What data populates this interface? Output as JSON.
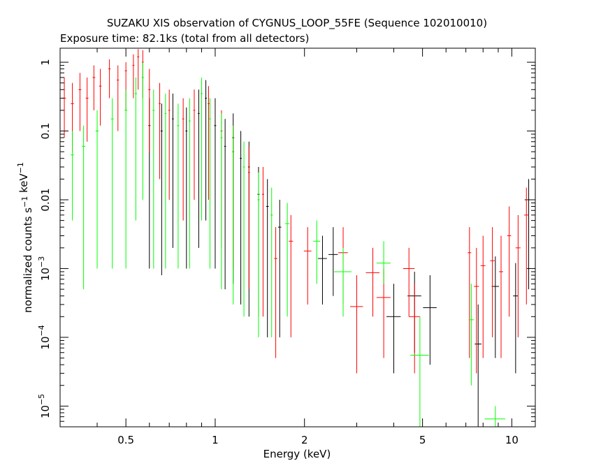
{
  "chart_data": {
    "type": "scatter",
    "title": "SUZAKU XIS observation of CYGNUS_LOOP_55FE (Sequence 102010010)",
    "subtitle": "Exposure time: 82.1ks (total from all detectors)",
    "xlabel": "Energy (keV)",
    "ylabel": "normalized counts s^-1 keV^-1",
    "x_scale": "log",
    "y_scale": "log",
    "xlim": [
      0.3,
      12
    ],
    "ylim": [
      5e-06,
      1.6
    ],
    "x_ticks": [
      {
        "value": 0.5,
        "label": "0.5"
      },
      {
        "value": 1,
        "label": "1"
      },
      {
        "value": 2,
        "label": "2"
      },
      {
        "value": 5,
        "label": "5"
      },
      {
        "value": 10,
        "label": "10"
      }
    ],
    "y_ticks": [
      {
        "value": 1,
        "base": "1",
        "exp": ""
      },
      {
        "value": 0.1,
        "base": "0.1",
        "exp": ""
      },
      {
        "value": 0.01,
        "base": "0.01",
        "exp": ""
      },
      {
        "value": 0.001,
        "base": "10",
        "exp": "−3"
      },
      {
        "value": 0.0001,
        "base": "10",
        "exp": "−4"
      },
      {
        "value": 1e-05,
        "base": "10",
        "exp": "−5"
      }
    ],
    "grid": false,
    "series": [
      {
        "color": "#000000",
        "points": [
          {
            "x": 0.6,
            "y": 0.12,
            "xerr": 0.005,
            "ylo": 0.001,
            "yhi": 0.3
          },
          {
            "x": 0.66,
            "y": 0.1,
            "xerr": 0.005,
            "ylo": 0.0008,
            "yhi": 0.25
          },
          {
            "x": 0.72,
            "y": 0.15,
            "xerr": 0.005,
            "ylo": 0.002,
            "yhi": 0.35
          },
          {
            "x": 0.8,
            "y": 0.1,
            "xerr": 0.006,
            "ylo": 0.001,
            "yhi": 0.22
          },
          {
            "x": 0.88,
            "y": 0.18,
            "xerr": 0.006,
            "ylo": 0.002,
            "yhi": 0.4
          },
          {
            "x": 0.93,
            "y": 0.3,
            "xerr": 0.007,
            "ylo": 0.005,
            "yhi": 0.55
          },
          {
            "x": 1.0,
            "y": 0.12,
            "xerr": 0.008,
            "ylo": 0.001,
            "yhi": 0.3
          },
          {
            "x": 1.08,
            "y": 0.06,
            "xerr": 0.008,
            "ylo": 0.0005,
            "yhi": 0.15
          },
          {
            "x": 1.15,
            "y": 0.08,
            "xerr": 0.009,
            "ylo": 0.0006,
            "yhi": 0.18
          },
          {
            "x": 1.22,
            "y": 0.04,
            "xerr": 0.01,
            "ylo": 0.0003,
            "yhi": 0.1
          },
          {
            "x": 1.3,
            "y": 0.03,
            "xerr": 0.01,
            "ylo": 0.0002,
            "yhi": 0.07
          },
          {
            "x": 1.4,
            "y": 0.012,
            "xerr": 0.012,
            "ylo": 0.0002,
            "yhi": 0.03
          },
          {
            "x": 1.5,
            "y": 0.008,
            "xerr": 0.015,
            "ylo": 0.0001,
            "yhi": 0.02
          },
          {
            "x": 1.65,
            "y": 0.004,
            "xerr": 0.02,
            "ylo": 0.0001,
            "yhi": 0.01
          },
          {
            "x": 2.3,
            "y": 0.0014,
            "xerr": 0.08,
            "ylo": 0.0003,
            "yhi": 0.003
          },
          {
            "x": 2.5,
            "y": 0.0016,
            "xerr": 0.09,
            "ylo": 0.0004,
            "yhi": 0.004
          },
          {
            "x": 4.0,
            "y": 0.0002,
            "xerr": 0.22,
            "ylo": 3e-05,
            "yhi": 0.0006
          },
          {
            "x": 4.7,
            "y": 0.0004,
            "xerr": 0.25,
            "ylo": 6e-05,
            "yhi": 0.0009
          },
          {
            "x": 5.3,
            "y": 0.00027,
            "xerr": 0.28,
            "ylo": 4e-05,
            "yhi": 0.0008
          },
          {
            "x": 7.7,
            "y": 8e-05,
            "xerr": 0.2,
            "ylo": 5e-06,
            "yhi": 0.0003
          },
          {
            "x": 8.8,
            "y": 0.00055,
            "xerr": 0.25,
            "ylo": 5e-05,
            "yhi": 0.0015
          },
          {
            "x": 10.3,
            "y": 0.0004,
            "xerr": 0.2,
            "ylo": 3e-05,
            "yhi": 0.0012
          },
          {
            "x": 11.4,
            "y": 0.01,
            "xerr": 0.35,
            "ylo": 0.0005,
            "yhi": 0.02
          }
        ]
      },
      {
        "color": "#ff0000",
        "points": [
          {
            "x": 0.31,
            "y": 0.3,
            "xerr": 0.004,
            "ylo": 0.08,
            "yhi": 0.6
          },
          {
            "x": 0.33,
            "y": 0.25,
            "xerr": 0.004,
            "ylo": 0.05,
            "yhi": 0.5
          },
          {
            "x": 0.35,
            "y": 0.4,
            "xerr": 0.004,
            "ylo": 0.1,
            "yhi": 0.7
          },
          {
            "x": 0.37,
            "y": 0.3,
            "xerr": 0.004,
            "ylo": 0.07,
            "yhi": 0.6
          },
          {
            "x": 0.39,
            "y": 0.6,
            "xerr": 0.004,
            "ylo": 0.2,
            "yhi": 0.9
          },
          {
            "x": 0.41,
            "y": 0.45,
            "xerr": 0.004,
            "ylo": 0.12,
            "yhi": 0.8
          },
          {
            "x": 0.44,
            "y": 0.8,
            "xerr": 0.004,
            "ylo": 0.3,
            "yhi": 1.1
          },
          {
            "x": 0.47,
            "y": 0.55,
            "xerr": 0.004,
            "ylo": 0.1,
            "yhi": 0.9
          },
          {
            "x": 0.5,
            "y": 0.75,
            "xerr": 0.004,
            "ylo": 0.2,
            "yhi": 1.0
          },
          {
            "x": 0.53,
            "y": 0.9,
            "xerr": 0.004,
            "ylo": 0.3,
            "yhi": 1.3
          },
          {
            "x": 0.55,
            "y": 1.2,
            "xerr": 0.004,
            "ylo": 0.4,
            "yhi": 1.55
          },
          {
            "x": 0.57,
            "y": 1.0,
            "xerr": 0.004,
            "ylo": 0.3,
            "yhi": 1.5
          },
          {
            "x": 0.6,
            "y": 0.4,
            "xerr": 0.005,
            "ylo": 0.05,
            "yhi": 0.8
          },
          {
            "x": 0.65,
            "y": 0.25,
            "xerr": 0.005,
            "ylo": 0.02,
            "yhi": 0.5
          },
          {
            "x": 0.7,
            "y": 0.2,
            "xerr": 0.005,
            "ylo": 0.01,
            "yhi": 0.4
          },
          {
            "x": 0.78,
            "y": 0.15,
            "xerr": 0.006,
            "ylo": 0.005,
            "yhi": 0.3
          },
          {
            "x": 0.85,
            "y": 0.2,
            "xerr": 0.006,
            "ylo": 0.01,
            "yhi": 0.4
          },
          {
            "x": 0.95,
            "y": 0.25,
            "xerr": 0.007,
            "ylo": 0.01,
            "yhi": 0.45
          },
          {
            "x": 1.05,
            "y": 0.1,
            "xerr": 0.008,
            "ylo": 0.002,
            "yhi": 0.2
          },
          {
            "x": 1.15,
            "y": 0.05,
            "xerr": 0.009,
            "ylo": 0.001,
            "yhi": 0.12
          },
          {
            "x": 1.3,
            "y": 0.025,
            "xerr": 0.01,
            "ylo": 0.0005,
            "yhi": 0.06
          },
          {
            "x": 1.45,
            "y": 0.012,
            "xerr": 0.012,
            "ylo": 0.0002,
            "yhi": 0.03
          },
          {
            "x": 1.6,
            "y": 0.0014,
            "xerr": 0.02,
            "ylo": 5e-05,
            "yhi": 0.004
          },
          {
            "x": 1.8,
            "y": 0.0025,
            "xerr": 0.03,
            "ylo": 0.0001,
            "yhi": 0.006
          },
          {
            "x": 2.05,
            "y": 0.0018,
            "xerr": 0.06,
            "ylo": 0.0003,
            "yhi": 0.004
          },
          {
            "x": 2.7,
            "y": 0.0017,
            "xerr": 0.1,
            "ylo": 0.0003,
            "yhi": 0.004
          },
          {
            "x": 3.0,
            "y": 0.00028,
            "xerr": 0.15,
            "ylo": 3e-05,
            "yhi": 0.0008
          },
          {
            "x": 3.4,
            "y": 0.00087,
            "xerr": 0.18,
            "ylo": 0.0002,
            "yhi": 0.002
          },
          {
            "x": 3.7,
            "y": 0.00038,
            "xerr": 0.2,
            "ylo": 5e-05,
            "yhi": 0.001
          },
          {
            "x": 4.5,
            "y": 0.001,
            "xerr": 0.2,
            "ylo": 0.0002,
            "yhi": 0.002
          },
          {
            "x": 4.7,
            "y": 0.0002,
            "xerr": 0.2,
            "ylo": 3e-05,
            "yhi": 0.0006
          },
          {
            "x": 7.2,
            "y": 0.0017,
            "xerr": 0.1,
            "ylo": 5e-05,
            "yhi": 0.004
          },
          {
            "x": 7.6,
            "y": 0.00055,
            "xerr": 0.15,
            "ylo": 3e-05,
            "yhi": 0.002
          },
          {
            "x": 8.0,
            "y": 0.0011,
            "xerr": 0.15,
            "ylo": 5e-05,
            "yhi": 0.003
          },
          {
            "x": 8.6,
            "y": 0.0013,
            "xerr": 0.15,
            "ylo": 0.0001,
            "yhi": 0.004
          },
          {
            "x": 9.2,
            "y": 0.0009,
            "xerr": 0.15,
            "ylo": 5e-05,
            "yhi": 0.003
          },
          {
            "x": 9.8,
            "y": 0.003,
            "xerr": 0.15,
            "ylo": 0.0002,
            "yhi": 0.008
          },
          {
            "x": 10.5,
            "y": 0.002,
            "xerr": 0.2,
            "ylo": 0.0001,
            "yhi": 0.006
          },
          {
            "x": 11.2,
            "y": 0.006,
            "xerr": 0.2,
            "ylo": 0.0003,
            "yhi": 0.015
          }
        ]
      },
      {
        "color": "#00ff00",
        "points": [
          {
            "x": 0.33,
            "y": 0.045,
            "xerr": 0.004,
            "ylo": 0.005,
            "yhi": 0.1
          },
          {
            "x": 0.36,
            "y": 0.06,
            "xerr": 0.005,
            "ylo": 0.0005,
            "yhi": 0.12
          },
          {
            "x": 0.4,
            "y": 0.1,
            "xerr": 0.005,
            "ylo": 0.001,
            "yhi": 0.2
          },
          {
            "x": 0.45,
            "y": 0.15,
            "xerr": 0.005,
            "ylo": 0.001,
            "yhi": 0.3
          },
          {
            "x": 0.5,
            "y": 0.2,
            "xerr": 0.005,
            "ylo": 0.001,
            "yhi": 0.4
          },
          {
            "x": 0.54,
            "y": 0.35,
            "xerr": 0.005,
            "ylo": 0.005,
            "yhi": 0.6
          },
          {
            "x": 0.57,
            "y": 0.6,
            "xerr": 0.005,
            "ylo": 0.01,
            "yhi": 1.0
          },
          {
            "x": 0.62,
            "y": 0.2,
            "xerr": 0.005,
            "ylo": 0.001,
            "yhi": 0.4
          },
          {
            "x": 0.68,
            "y": 0.18,
            "xerr": 0.005,
            "ylo": 0.001,
            "yhi": 0.35
          },
          {
            "x": 0.75,
            "y": 0.12,
            "xerr": 0.006,
            "ylo": 0.001,
            "yhi": 0.25
          },
          {
            "x": 0.82,
            "y": 0.14,
            "xerr": 0.006,
            "ylo": 0.001,
            "yhi": 0.3
          },
          {
            "x": 0.9,
            "y": 0.35,
            "xerr": 0.007,
            "ylo": 0.005,
            "yhi": 0.6
          },
          {
            "x": 0.96,
            "y": 0.15,
            "xerr": 0.007,
            "ylo": 0.001,
            "yhi": 0.3
          },
          {
            "x": 1.05,
            "y": 0.08,
            "xerr": 0.008,
            "ylo": 0.0005,
            "yhi": 0.18
          },
          {
            "x": 1.15,
            "y": 0.05,
            "xerr": 0.009,
            "ylo": 0.0003,
            "yhi": 0.12
          },
          {
            "x": 1.25,
            "y": 0.03,
            "xerr": 0.01,
            "ylo": 0.0002,
            "yhi": 0.07
          },
          {
            "x": 1.4,
            "y": 0.01,
            "xerr": 0.012,
            "ylo": 0.0001,
            "yhi": 0.025
          },
          {
            "x": 1.55,
            "y": 0.006,
            "xerr": 0.015,
            "ylo": 0.0001,
            "yhi": 0.015
          },
          {
            "x": 1.75,
            "y": 0.0045,
            "xerr": 0.03,
            "ylo": 0.0002,
            "yhi": 0.009
          },
          {
            "x": 2.2,
            "y": 0.0025,
            "xerr": 0.06,
            "ylo": 0.0006,
            "yhi": 0.005
          },
          {
            "x": 2.7,
            "y": 0.0009,
            "xerr": 0.18,
            "ylo": 0.0002,
            "yhi": 0.002
          },
          {
            "x": 3.7,
            "y": 0.0012,
            "xerr": 0.2,
            "ylo": 0.0006,
            "yhi": 0.0025
          },
          {
            "x": 4.9,
            "y": 5.5e-05,
            "xerr": 0.35,
            "ylo": 5e-06,
            "yhi": 0.0002
          },
          {
            "x": 7.3,
            "y": 0.00018,
            "xerr": 0.15,
            "ylo": 2e-05,
            "yhi": 0.0006
          },
          {
            "x": 8.8,
            "y": 6.5e-06,
            "xerr": 0.7,
            "ylo": 5e-06,
            "yhi": 1e-05
          }
        ]
      }
    ]
  }
}
